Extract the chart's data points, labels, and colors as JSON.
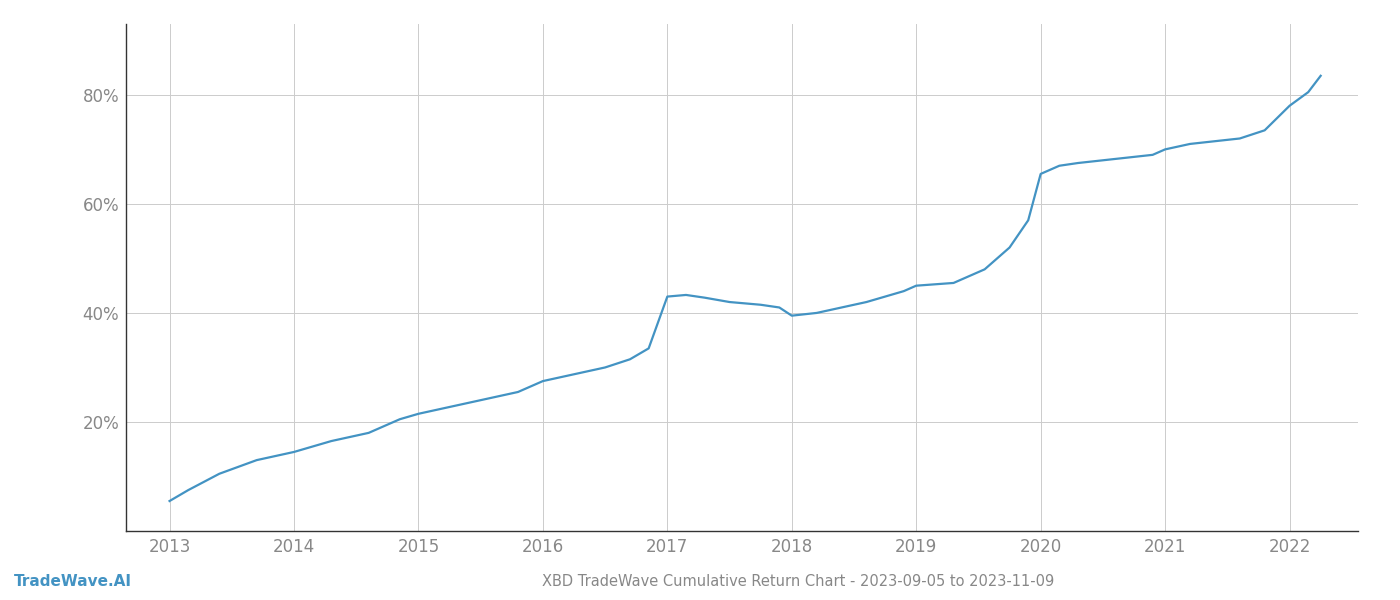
{
  "title": "XBD TradeWave Cumulative Return Chart - 2023-09-05 to 2023-11-09",
  "watermark": "TradeWave.AI",
  "line_color": "#4393c3",
  "background_color": "#ffffff",
  "grid_color": "#cccccc",
  "x_years": [
    2013,
    2014,
    2015,
    2016,
    2017,
    2018,
    2019,
    2020,
    2021,
    2022
  ],
  "data_points": [
    [
      2013.0,
      5.5
    ],
    [
      2013.15,
      7.5
    ],
    [
      2013.4,
      10.5
    ],
    [
      2013.7,
      13.0
    ],
    [
      2014.0,
      14.5
    ],
    [
      2014.3,
      16.5
    ],
    [
      2014.6,
      18.0
    ],
    [
      2014.85,
      20.5
    ],
    [
      2015.0,
      21.5
    ],
    [
      2015.2,
      22.5
    ],
    [
      2015.5,
      24.0
    ],
    [
      2015.8,
      25.5
    ],
    [
      2016.0,
      27.5
    ],
    [
      2016.2,
      28.5
    ],
    [
      2016.5,
      30.0
    ],
    [
      2016.7,
      31.5
    ],
    [
      2016.85,
      33.5
    ],
    [
      2017.0,
      43.0
    ],
    [
      2017.15,
      43.3
    ],
    [
      2017.3,
      42.8
    ],
    [
      2017.5,
      42.0
    ],
    [
      2017.75,
      41.5
    ],
    [
      2017.9,
      41.0
    ],
    [
      2018.0,
      39.5
    ],
    [
      2018.2,
      40.0
    ],
    [
      2018.4,
      41.0
    ],
    [
      2018.6,
      42.0
    ],
    [
      2018.75,
      43.0
    ],
    [
      2018.9,
      44.0
    ],
    [
      2019.0,
      45.0
    ],
    [
      2019.3,
      45.5
    ],
    [
      2019.55,
      48.0
    ],
    [
      2019.75,
      52.0
    ],
    [
      2019.9,
      57.0
    ],
    [
      2020.0,
      65.5
    ],
    [
      2020.15,
      67.0
    ],
    [
      2020.3,
      67.5
    ],
    [
      2020.5,
      68.0
    ],
    [
      2020.7,
      68.5
    ],
    [
      2020.9,
      69.0
    ],
    [
      2021.0,
      70.0
    ],
    [
      2021.2,
      71.0
    ],
    [
      2021.4,
      71.5
    ],
    [
      2021.6,
      72.0
    ],
    [
      2021.8,
      73.5
    ],
    [
      2022.0,
      78.0
    ],
    [
      2022.15,
      80.5
    ],
    [
      2022.25,
      83.5
    ]
  ],
  "ylim": [
    0,
    93
  ],
  "xlim": [
    2012.65,
    2022.55
  ],
  "ylabel_ticks": [
    20,
    40,
    60,
    80
  ],
  "tick_label_color": "#888888",
  "title_color": "#888888",
  "title_fontsize": 10.5,
  "watermark_fontsize": 11,
  "tick_fontsize": 12,
  "line_width": 1.6,
  "spine_color": "#333333"
}
